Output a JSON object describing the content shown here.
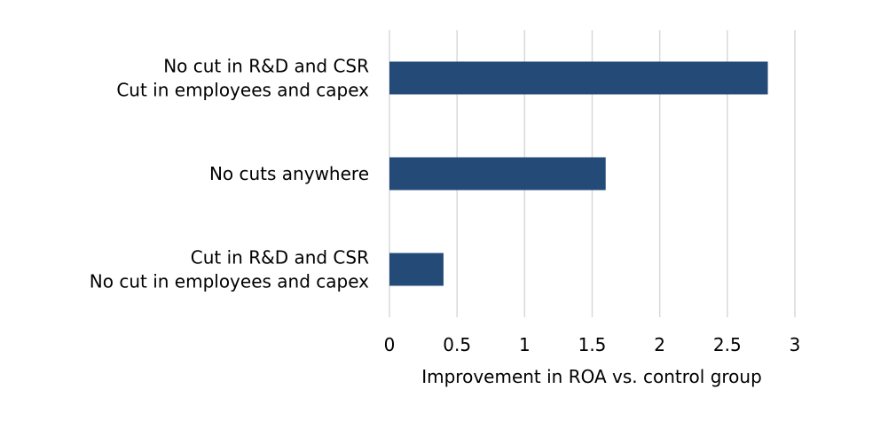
{
  "chart_data": {
    "type": "bar",
    "orientation": "horizontal",
    "categories": [
      [
        "No cut in R&D and CSR",
        "Cut in employees and capex"
      ],
      [
        "No cuts anywhere"
      ],
      [
        "Cut in R&D and CSR",
        "No cut in employees and capex"
      ]
    ],
    "values": [
      2.8,
      1.6,
      0.4
    ],
    "xlabel": "Improvement in ROA vs. control group",
    "ylabel": "",
    "xlim": [
      0,
      3
    ],
    "xticks": [
      "0",
      "0.5",
      "1",
      "1.5",
      "2",
      "2.5",
      "3"
    ],
    "xtick_values": [
      0,
      0.5,
      1,
      1.5,
      2,
      2.5,
      3
    ],
    "grid": "vertical",
    "legend": "none",
    "colors": {
      "bar": "#244a78",
      "grid": "#d9d9d9",
      "text": "#000000"
    }
  }
}
